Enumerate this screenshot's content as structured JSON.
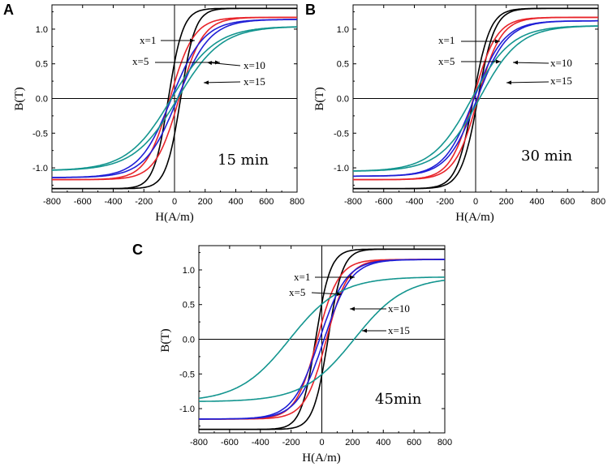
{
  "chart_data": [
    {
      "type": "line",
      "panel": "A",
      "annotation": "15 min",
      "xlabel": "H(A/m)",
      "ylabel": "B(T)",
      "xlim": [
        -800,
        800
      ],
      "ylim": [
        -1.35,
        1.35
      ],
      "xticks": [
        "-800",
        "-600",
        "-400",
        "-200",
        "0",
        "200",
        "400",
        "600",
        "800"
      ],
      "yticks": [
        "-1.0",
        "-0.5",
        "0.0",
        "0.5",
        "1.0"
      ],
      "series": [
        {
          "name": "x=1",
          "color": "#000000",
          "bsat": 1.3,
          "hc": 40,
          "w": 95
        },
        {
          "name": "x=5",
          "color": "#e8242a",
          "bsat": 1.17,
          "hc": 30,
          "w": 155
        },
        {
          "name": "x=10",
          "color": "#1f1fd6",
          "bsat": 1.14,
          "hc": 20,
          "w": 210
        },
        {
          "name": "x=15",
          "color": "#13958f",
          "bsat": 1.04,
          "hc": 20,
          "w": 285
        }
      ]
    },
    {
      "type": "line",
      "panel": "B",
      "annotation": "30 min",
      "xlabel": "H(A/m)",
      "ylabel": "B(T)",
      "xlim": [
        -800,
        800
      ],
      "ylim": [
        -1.35,
        1.35
      ],
      "xticks": [
        "-800",
        "-600",
        "-400",
        "-200",
        "0",
        "200",
        "400",
        "600",
        "800"
      ],
      "yticks": [
        "-1.0",
        "-0.5",
        "0.0",
        "0.5",
        "1.0"
      ],
      "series": [
        {
          "name": "x=1",
          "color": "#000000",
          "bsat": 1.3,
          "hc": 15,
          "w": 110
        },
        {
          "name": "x=5",
          "color": "#e8242a",
          "bsat": 1.17,
          "hc": 15,
          "w": 150
        },
        {
          "name": "x=10",
          "color": "#1f1fd6",
          "bsat": 1.12,
          "hc": 10,
          "w": 195
        },
        {
          "name": "x=15",
          "color": "#13958f",
          "bsat": 1.05,
          "hc": 25,
          "w": 260
        }
      ]
    },
    {
      "type": "line",
      "panel": "C",
      "annotation": "45min",
      "xlabel": "H(A/m)",
      "ylabel": "B(T)",
      "xlim": [
        -800,
        800
      ],
      "ylim": [
        -1.35,
        1.35
      ],
      "xticks": [
        "-800",
        "-600",
        "-400",
        "-200",
        "0",
        "200",
        "400",
        "600",
        "800"
      ],
      "yticks": [
        "-1.0",
        "-0.5",
        "0.0",
        "0.5",
        "1.0"
      ],
      "series": [
        {
          "name": "x=1",
          "color": "#000000",
          "bsat": 1.3,
          "hc": 40,
          "w": 95
        },
        {
          "name": "x=5",
          "color": "#e8242a",
          "bsat": 1.15,
          "hc": 30,
          "w": 140
        },
        {
          "name": "x=10",
          "color": "#1f1fd6",
          "bsat": 1.15,
          "hc": 15,
          "w": 175
        },
        {
          "name": "x=15",
          "color": "#13958f",
          "bsat": 0.9,
          "hc": 210,
          "w": 330
        }
      ]
    }
  ]
}
